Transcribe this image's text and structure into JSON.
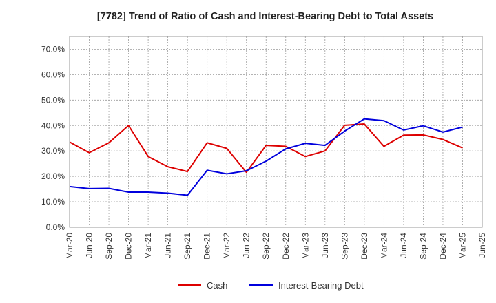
{
  "chart_data": {
    "type": "line",
    "title": "[7782]  Trend of Ratio of Cash and Interest-Bearing Debt to Total Assets",
    "xlabel": "",
    "ylabel": "",
    "ylim": [
      0,
      75
    ],
    "yticks": [
      0,
      10,
      20,
      30,
      40,
      50,
      60,
      70
    ],
    "ytick_labels": [
      "0.0%",
      "10.0%",
      "20.0%",
      "30.0%",
      "40.0%",
      "50.0%",
      "60.0%",
      "70.0%"
    ],
    "categories": [
      "Mar-20",
      "Jun-20",
      "Sep-20",
      "Dec-20",
      "Mar-21",
      "Jun-21",
      "Sep-21",
      "Dec-21",
      "Mar-22",
      "Jun-22",
      "Sep-22",
      "Dec-22",
      "Mar-23",
      "Jun-23",
      "Sep-23",
      "Dec-23",
      "Mar-24",
      "Jun-24",
      "Sep-24",
      "Dec-24",
      "Mar-25",
      "Jun-25"
    ],
    "grid": true,
    "legend_position": "bottom-center",
    "series": [
      {
        "name": "Cash",
        "color": "#dd0000",
        "values": [
          33.5,
          29.3,
          33.2,
          40.0,
          27.8,
          23.8,
          21.9,
          33.2,
          31.0,
          21.6,
          32.2,
          31.8,
          27.8,
          30.0,
          40.1,
          40.6,
          31.8,
          36.2,
          36.3,
          34.5,
          31.2,
          null
        ]
      },
      {
        "name": "Interest-Bearing Debt",
        "color": "#0000dd",
        "values": [
          16.0,
          15.2,
          15.3,
          13.8,
          13.8,
          13.4,
          12.6,
          22.4,
          21.0,
          22.2,
          26.0,
          30.8,
          33.0,
          32.2,
          37.8,
          42.6,
          41.9,
          38.2,
          39.9,
          37.4,
          39.4,
          null
        ]
      }
    ]
  }
}
